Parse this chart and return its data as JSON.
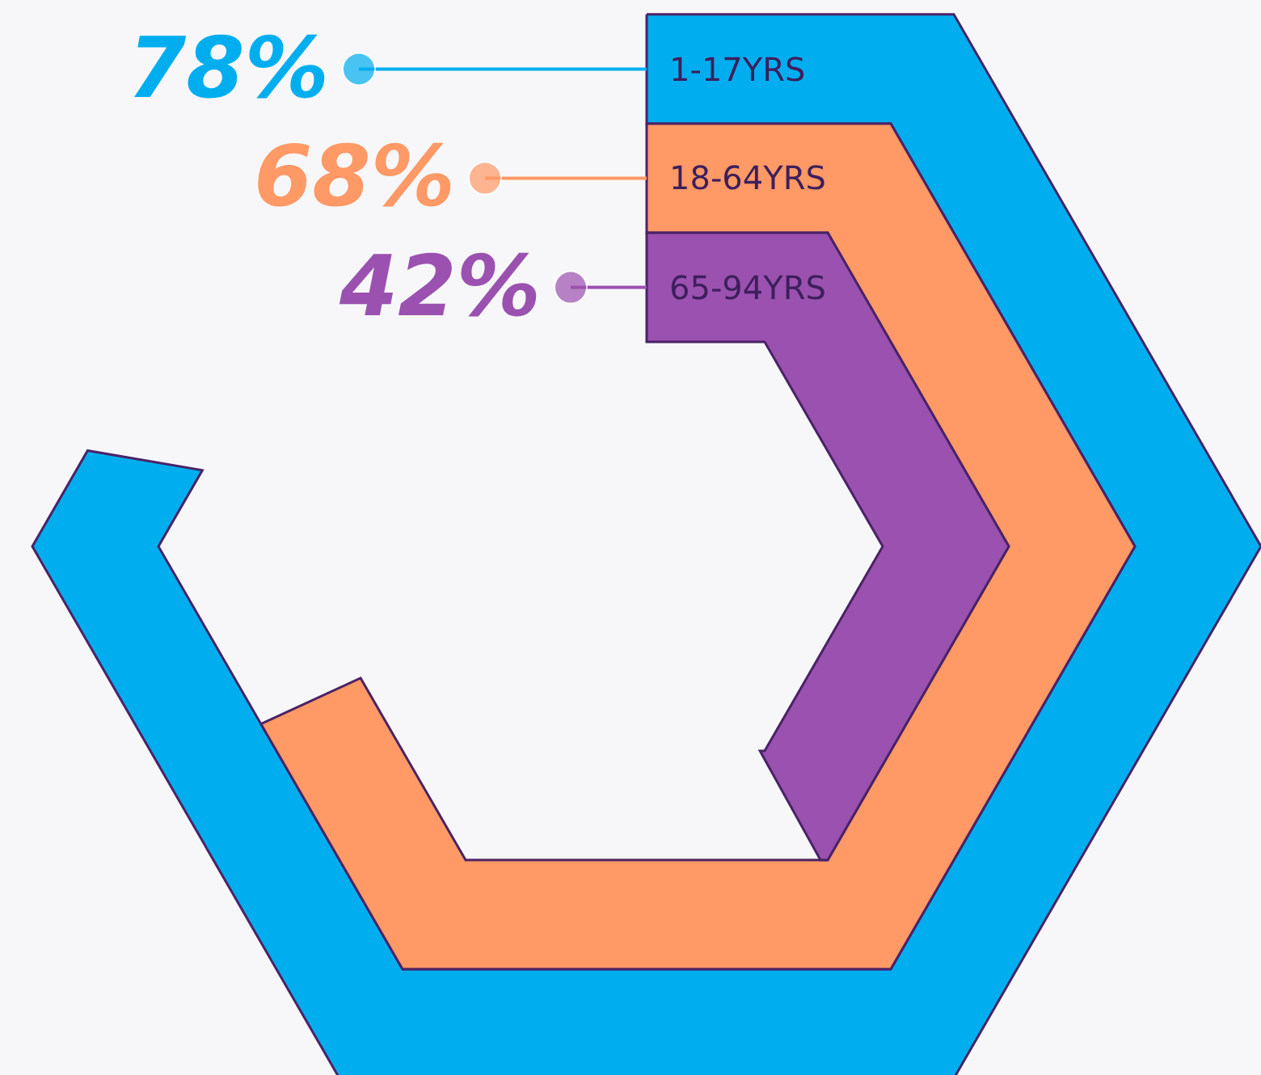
{
  "chart_data": {
    "type": "other",
    "categories": [
      "1-17YRS",
      "18-64YRS",
      "65-94YRS"
    ],
    "values": [
      78,
      68,
      42
    ],
    "colors": [
      "#00aeef",
      "#ff9966",
      "#9b51b0"
    ],
    "value_labels": [
      "78%",
      "68%",
      "42%"
    ]
  }
}
